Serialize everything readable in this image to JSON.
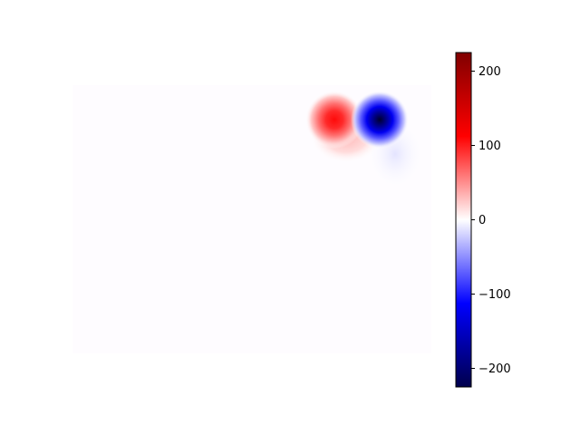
{
  "chart_data": {
    "type": "heatmap",
    "title": "",
    "xlabel": "",
    "ylabel": "",
    "axes_visible": false,
    "colormap": "seismic",
    "background_value": 0,
    "features": [
      {
        "kind": "peak",
        "sign": "positive",
        "peak_value": 140
      },
      {
        "kind": "peak",
        "sign": "negative",
        "peak_value": -225
      }
    ],
    "colorbar": {
      "orientation": "vertical",
      "placement": "right",
      "vmin": -225,
      "vmax": 225,
      "ticks": [
        -200,
        -100,
        0,
        100,
        200
      ],
      "tick_labels": [
        "−200",
        "−100",
        "0",
        "100",
        "200"
      ]
    }
  }
}
